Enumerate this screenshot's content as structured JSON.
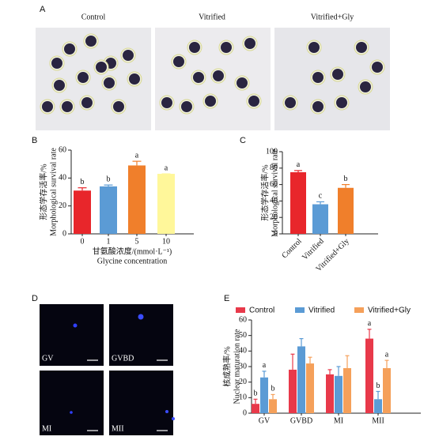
{
  "figure": {
    "panel_a": {
      "label": "A",
      "titles": [
        "Control",
        "Vitrified",
        "Vitrified+Gly"
      ]
    },
    "panel_d": {
      "label": "D",
      "labels": [
        "GV",
        "GVBD",
        "MI",
        "MII"
      ]
    }
  },
  "chart_data": [
    {
      "type": "bar",
      "panel": "B",
      "categories": [
        "0",
        "1",
        "5",
        "10"
      ],
      "values": [
        31,
        34,
        49,
        43
      ],
      "errors": [
        2,
        1,
        3,
        0
      ],
      "letters": [
        "b",
        "b",
        "a",
        "a"
      ],
      "colors": [
        "#e8262b",
        "#5b9bd5",
        "#f07f2b",
        "#fff79a"
      ],
      "ylabel": [
        "形态学存活率/%",
        "Morphological survival rate"
      ],
      "xlabel": [
        "甘氨酸浓度/(mmol·L⁻¹)",
        "Glycine concentration"
      ],
      "ylim": [
        0,
        60
      ],
      "yticks": [
        0,
        20,
        40,
        60
      ]
    },
    {
      "type": "bar",
      "panel": "C",
      "categories": [
        "Control",
        "Vitrified",
        "Vitrified+Gly"
      ],
      "values": [
        75,
        36,
        56
      ],
      "errors": [
        2,
        3,
        4
      ],
      "letters": [
        "a",
        "c",
        "b"
      ],
      "colors": [
        "#e8262b",
        "#5b9bd5",
        "#f07f2b"
      ],
      "ylabel": [
        "形态学存活率/%",
        "Morphological survival rate"
      ],
      "ylim": [
        0,
        100
      ],
      "yticks": [
        0,
        20,
        40,
        60,
        80,
        100
      ]
    },
    {
      "type": "grouped-bar",
      "panel": "E",
      "categories": [
        "GV",
        "GVBD",
        "MI",
        "MII"
      ],
      "series": [
        {
          "name": "Control",
          "color": "#e8394a",
          "values": [
            6,
            28,
            25,
            48
          ],
          "errors": [
            3,
            10,
            3,
            6
          ],
          "letters": [
            "b",
            null,
            null,
            "a"
          ]
        },
        {
          "name": "Vitrified",
          "color": "#5b9bd5",
          "values": [
            23,
            43,
            24,
            9
          ],
          "errors": [
            4,
            5,
            6,
            5
          ],
          "letters": [
            "a",
            null,
            null,
            "b"
          ]
        },
        {
          "name": "Vitrified+Gly",
          "color": "#f5a05a",
          "values": [
            9,
            32,
            29,
            29
          ],
          "errors": [
            3,
            4,
            8,
            5
          ],
          "letters": [
            "b",
            null,
            null,
            "a"
          ]
        }
      ],
      "ylabel": [
        "核成熟率/%",
        "Nuclear maturation rate"
      ],
      "ylim": [
        0,
        60
      ],
      "yticks": [
        0,
        10,
        20,
        30,
        40,
        50,
        60
      ]
    }
  ]
}
